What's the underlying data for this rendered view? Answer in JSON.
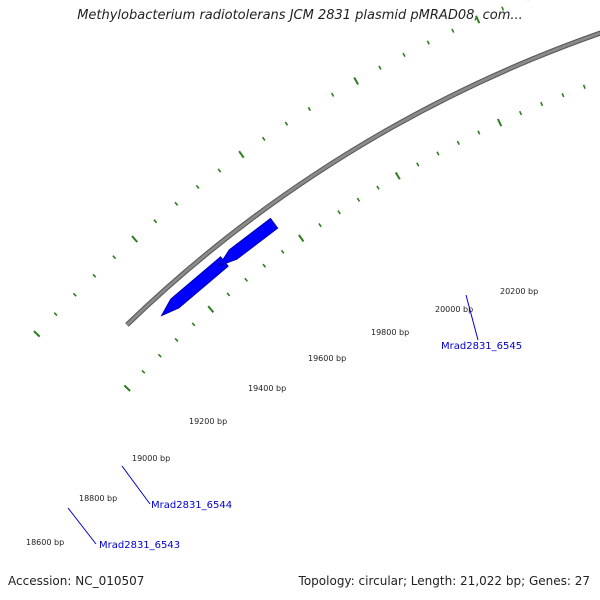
{
  "map": {
    "title": "Methylobacterium radiotolerans JCM 2831 plasmid pMRAD08, com...",
    "accession": "Accession: NC_010507",
    "summary": "Topology: circular; Length: 21,022 bp; Genes: 27",
    "colors": {
      "backbone": "#8a8a8a",
      "ticks": "#2e7d1e",
      "forward_gene": "#0000ff",
      "reverse_gene": "#ff0000",
      "gene_label": "#0000cc"
    },
    "tick_labels": [
      {
        "bp": 18600,
        "text": "18600 bp"
      },
      {
        "bp": 18800,
        "text": "18800 bp"
      },
      {
        "bp": 19000,
        "text": "19000 bp"
      },
      {
        "bp": 19200,
        "text": "19200 bp"
      },
      {
        "bp": 19400,
        "text": "19400 bp"
      },
      {
        "bp": 19600,
        "text": "19600 bp"
      },
      {
        "bp": 19800,
        "text": "19800 bp"
      },
      {
        "bp": 20000,
        "text": "20000 bp"
      },
      {
        "bp": 20200,
        "text": "20200 bp"
      }
    ],
    "genes": [
      {
        "name": "Mrad2831_6543",
        "strand": "forward"
      },
      {
        "name": "Mrad2831_6544",
        "strand": "forward"
      },
      {
        "name": "Mrad2831_6545",
        "strand": "forward"
      },
      {
        "name": "",
        "strand": "reverse"
      }
    ]
  }
}
